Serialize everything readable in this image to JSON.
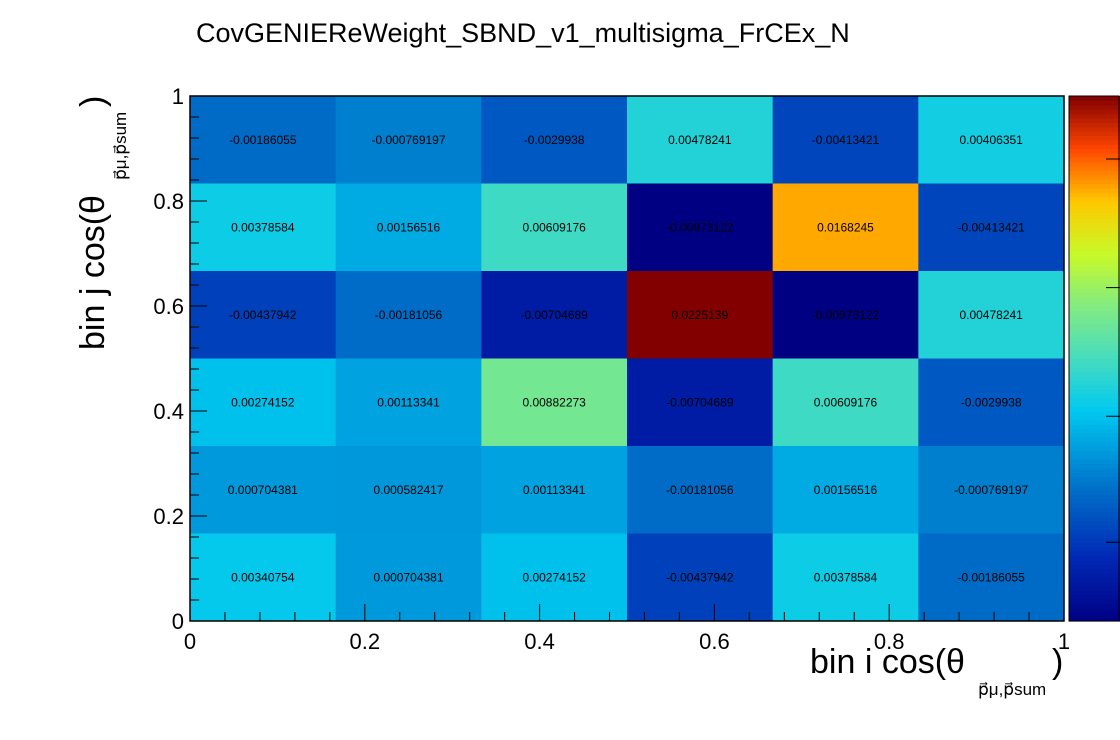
{
  "title": "CovGENIEReWeight_SBND_v1_multisigma_FrCEx_N",
  "chart_data": {
    "type": "heatmap",
    "title": "CovGENIEReWeight_SBND_v1_multisigma_FrCEx_N",
    "xlabel": {
      "main": "bin i cos(θ",
      "sub": "p⃗μ,p⃗sum",
      "close": ")"
    },
    "ylabel": {
      "main": "bin j cos(θ",
      "sub": "p⃗μ,p⃗sum",
      "close": ")"
    },
    "xlim": [
      0,
      1
    ],
    "ylim": [
      0,
      1
    ],
    "x_ticks": [
      "0",
      "0.2",
      "0.4",
      "0.6",
      "0.8",
      "1"
    ],
    "y_ticks": [
      "0",
      "0.2",
      "0.4",
      "0.6",
      "0.8",
      "1"
    ],
    "n_cols": 6,
    "n_rows": 6,
    "color_range": [
      -0.00973122,
      0.0225139
    ],
    "colormap": "rainbow",
    "grid": false,
    "rows_top_to_bottom": [
      [
        "-0.00186055",
        "-0.000769197",
        "-0.0029938",
        "0.00478241",
        "-0.00413421",
        "0.00406351"
      ],
      [
        "0.00378584",
        "0.00156516",
        "0.00609176",
        "-0.00973122",
        "0.0168245",
        "-0.00413421"
      ],
      [
        "-0.00437942",
        "-0.00181056",
        "-0.00704689",
        "0.0225139",
        "-0.00973122",
        "0.00478241"
      ],
      [
        "0.00274152",
        "0.00113341",
        "0.00882273",
        "-0.00704689",
        "0.00609176",
        "-0.0029938"
      ],
      [
        "0.000704381",
        "0.000582417",
        "0.00113341",
        "-0.00181056",
        "0.00156516",
        "-0.000769197"
      ],
      [
        "0.00340754",
        "0.000704381",
        "0.00274152",
        "-0.00437942",
        "0.00378584",
        "-0.00186055"
      ]
    ]
  }
}
